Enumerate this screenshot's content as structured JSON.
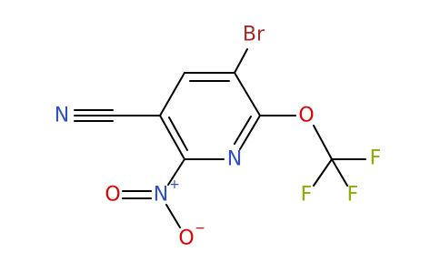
{
  "atoms": [
    {
      "label": "Br"
    },
    {
      "label": "N"
    },
    {
      "label": "O"
    },
    {
      "label": "F"
    },
    {
      "label": "F"
    },
    {
      "label": "F"
    },
    {
      "label": "N"
    },
    {
      "label": "N",
      "charge": "+"
    },
    {
      "label": "O"
    },
    {
      "label": "O",
      "charge": "−"
    }
  ]
}
